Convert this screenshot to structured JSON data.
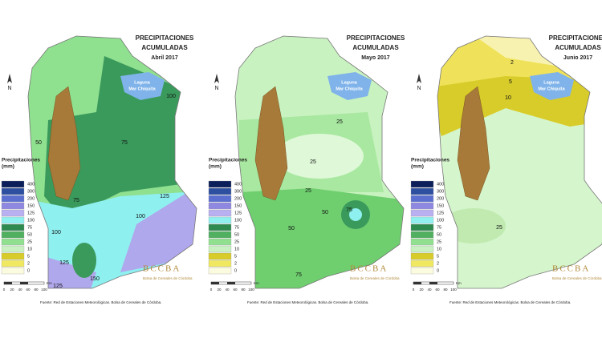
{
  "legend_colors": [
    "#0b1f5a",
    "#2d4fa0",
    "#5a6fd0",
    "#8f88e0",
    "#b8b0f0",
    "#90f0f0",
    "#2f8a50",
    "#50b060",
    "#90e090",
    "#c8f0c0",
    "#d8cc2a",
    "#f0e860",
    "#fbfbe0"
  ],
  "panels": [
    {
      "title": "PRECIPITACIONES",
      "title2": "ACUMULADAS",
      "month": "Abril 2017",
      "lake": "Laguna",
      "lake2": "Mar Chiquita",
      "north": "N",
      "legend_title": "Precipitaciones",
      "legend_unit": "(mm)",
      "legend": [
        "400",
        "300",
        "200",
        "150",
        "125",
        "100",
        "75",
        "50",
        "25",
        "10",
        "5",
        "2",
        "0"
      ],
      "contours": [
        "50",
        "75",
        "100",
        "75",
        "125",
        "100",
        "100",
        "125",
        "150",
        "125"
      ],
      "scale_unit": "Km",
      "scale_ticks": [
        "0",
        "20",
        "40",
        "60",
        "80",
        "100"
      ],
      "logo": "BCCBA",
      "logo_subtitle": "Bolsa de Cereales de Córdoba",
      "source": "Fuente: Red de Estaciones Meteorológicas. Bolsa de Cereales de Córdoba."
    },
    {
      "title": "PRECIPITACIONES",
      "title2": "ACUMULADAS",
      "month": "Mayo 2017",
      "lake": "Laguna",
      "lake2": "Mar Chiquita",
      "north": "N",
      "legend_title": "Precipitaciones",
      "legend_unit": "(mm)",
      "legend": [
        "400",
        "300",
        "200",
        "150",
        "125",
        "100",
        "75",
        "50",
        "25",
        "10",
        "5",
        "2",
        "0"
      ],
      "contours": [
        "25",
        "25",
        "25",
        "50",
        "75",
        "50",
        "75"
      ],
      "scale_unit": "Km",
      "scale_ticks": [
        "0",
        "20",
        "40",
        "60",
        "80",
        "100"
      ],
      "logo": "BCCBA",
      "logo_subtitle": "Bolsa de Cereales de Córdoba",
      "source": "Fuente: Red de Estaciones Meteorológicas. Bolsa de Cereales de Córdoba."
    },
    {
      "title": "PRECIPITACIONES",
      "title2": "ACUMULADAS",
      "month": "Junio 2017",
      "lake": "Laguna",
      "lake2": "Mar Chiquita",
      "north": "N",
      "legend_title": "Precipitaciones",
      "legend_unit": "(mm)",
      "legend": [
        "400",
        "300",
        "200",
        "150",
        "125",
        "100",
        "75",
        "50",
        "25",
        "10",
        "5",
        "2",
        "0"
      ],
      "contours": [
        "2",
        "5",
        "10",
        "25"
      ],
      "scale_unit": "Km",
      "scale_ticks": [
        "0",
        "20",
        "40",
        "60",
        "80",
        "100"
      ],
      "logo": "BCCBA",
      "logo_subtitle": "Bolsa de Cereales de Córdoba",
      "source": "Fuente: Red de Estaciones Meteorológicas. Bolsa de Cereales de Córdoba."
    }
  ]
}
